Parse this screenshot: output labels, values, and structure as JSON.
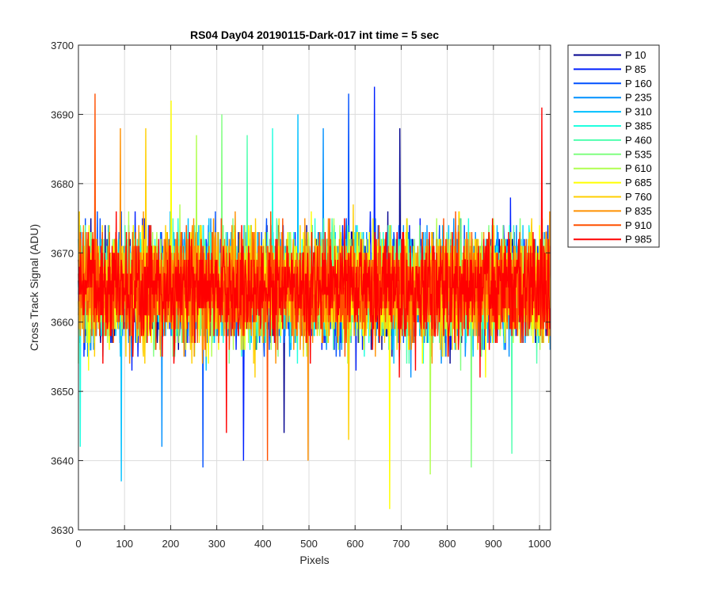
{
  "chart_data": {
    "type": "line",
    "title": "RS04 Day04 20190115-Dark-017 int time = 5 sec",
    "xlabel": "Pixels",
    "ylabel": "Cross Track Signal (ADU)",
    "xlim": [
      0,
      1024
    ],
    "ylim": [
      3630,
      3700
    ],
    "xticks": [
      "0",
      "100",
      "200",
      "300",
      "400",
      "500",
      "600",
      "700",
      "800",
      "900",
      "1000"
    ],
    "yticks": [
      "3630",
      "3640",
      "3650",
      "3660",
      "3670",
      "3680",
      "3690",
      "3700"
    ],
    "grid": true,
    "legend_position": "outside-right-top",
    "pixel_count": 1024,
    "signal_mean": 3665,
    "series": [
      {
        "name": "P 10",
        "color": "#00008f",
        "min": 3644,
        "max": 3688
      },
      {
        "name": "P 85",
        "color": "#0020ff",
        "min": 3640,
        "max": 3694
      },
      {
        "name": "P 160",
        "color": "#0050ff",
        "min": 3639,
        "max": 3693
      },
      {
        "name": "P 235",
        "color": "#0090ff",
        "min": 3642,
        "max": 3688
      },
      {
        "name": "P 310",
        "color": "#00c0ff",
        "min": 3637,
        "max": 3690
      },
      {
        "name": "P 385",
        "color": "#20ffdf",
        "min": 3642,
        "max": 3688
      },
      {
        "name": "P 460",
        "color": "#50ffaf",
        "min": 3641,
        "max": 3687
      },
      {
        "name": "P 535",
        "color": "#80ff80",
        "min": 3639,
        "max": 3690
      },
      {
        "name": "P 610",
        "color": "#b0ff50",
        "min": 3638,
        "max": 3687
      },
      {
        "name": "P 685",
        "color": "#ffff00",
        "min": 3633,
        "max": 3692
      },
      {
        "name": "P 760",
        "color": "#ffcf00",
        "min": 3643,
        "max": 3688
      },
      {
        "name": "P 835",
        "color": "#ff9000",
        "min": 3640,
        "max": 3688
      },
      {
        "name": "P 910",
        "color": "#ff5000",
        "min": 3640,
        "max": 3693
      },
      {
        "name": "P 985",
        "color": "#ff0000",
        "min": 3644,
        "max": 3691
      }
    ]
  }
}
